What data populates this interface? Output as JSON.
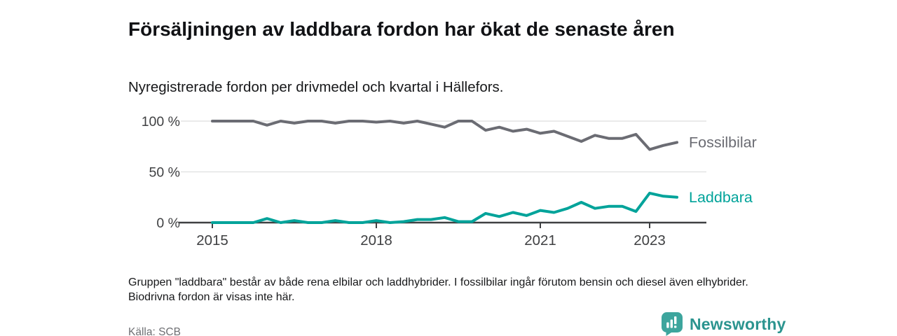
{
  "header": {
    "title": "Försäljningen av laddbara fordon har ökat de senaste åren",
    "subtitle": "Nyregistrerade fordon per drivmedel och kvartal i Hällefors."
  },
  "chart_data": {
    "type": "line",
    "x": [
      "2015-K1",
      "2015-K2",
      "2015-K3",
      "2015-K4",
      "2016-K1",
      "2016-K2",
      "2016-K3",
      "2016-K4",
      "2017-K1",
      "2017-K2",
      "2017-K3",
      "2017-K4",
      "2018-K1",
      "2018-K2",
      "2018-K3",
      "2018-K4",
      "2019-K1",
      "2019-K2",
      "2019-K3",
      "2019-K4",
      "2020-K1",
      "2020-K2",
      "2020-K3",
      "2020-K4",
      "2021-K1",
      "2021-K2",
      "2021-K3",
      "2021-K4",
      "2022-K1",
      "2022-K2",
      "2022-K3",
      "2022-K4",
      "2023-K1",
      "2023-K2",
      "2023-K3"
    ],
    "series": [
      {
        "name": "Fossilbilar",
        "color": "#6b6c73",
        "values": [
          100,
          100,
          100,
          100,
          96,
          100,
          98,
          100,
          100,
          98,
          100,
          100,
          99,
          100,
          98,
          100,
          97,
          94,
          100,
          100,
          91,
          94,
          90,
          92,
          88,
          90,
          85,
          80,
          86,
          83,
          83,
          87,
          72,
          76,
          79
        ]
      },
      {
        "name": "Laddbara",
        "color": "#00a39a",
        "values": [
          0,
          0,
          0,
          0,
          4,
          0,
          2,
          0,
          0,
          2,
          0,
          0,
          2,
          0,
          1,
          3,
          3,
          5,
          1,
          1,
          9,
          6,
          10,
          7,
          12,
          10,
          14,
          20,
          14,
          16,
          16,
          11,
          29,
          26,
          25
        ]
      }
    ],
    "ylabel": "",
    "xlabel": "",
    "ylim": [
      0,
      100
    ],
    "yticks": [
      {
        "value": 0,
        "label": "0 %"
      },
      {
        "value": 50,
        "label": "50 %"
      },
      {
        "value": 100,
        "label": "100 %"
      }
    ],
    "xticks": [
      {
        "index": 0,
        "label": "2015"
      },
      {
        "index": 12,
        "label": "2018"
      },
      {
        "index": 24,
        "label": "2021"
      },
      {
        "index": 32,
        "label": "2023"
      }
    ],
    "grid": "horizontal",
    "legend_position": "right-of-line-ends"
  },
  "footnote": "Gruppen \"laddbara\" består av både rena elbilar och laddhybrider. I fossilbilar ingår förutom bensin och diesel även elhybrider. Biodrivna fordon är visas inte här.",
  "source": "Källa: SCB",
  "brand": {
    "name": "Newsworthy",
    "icon": "bar-chart-badge-icon",
    "badge_color": "#3da59d",
    "text_color": "#2b948f"
  },
  "colors": {
    "gridline": "#e3e4e4",
    "axis": "#3f4042",
    "tick_label": "#3f4042"
  }
}
